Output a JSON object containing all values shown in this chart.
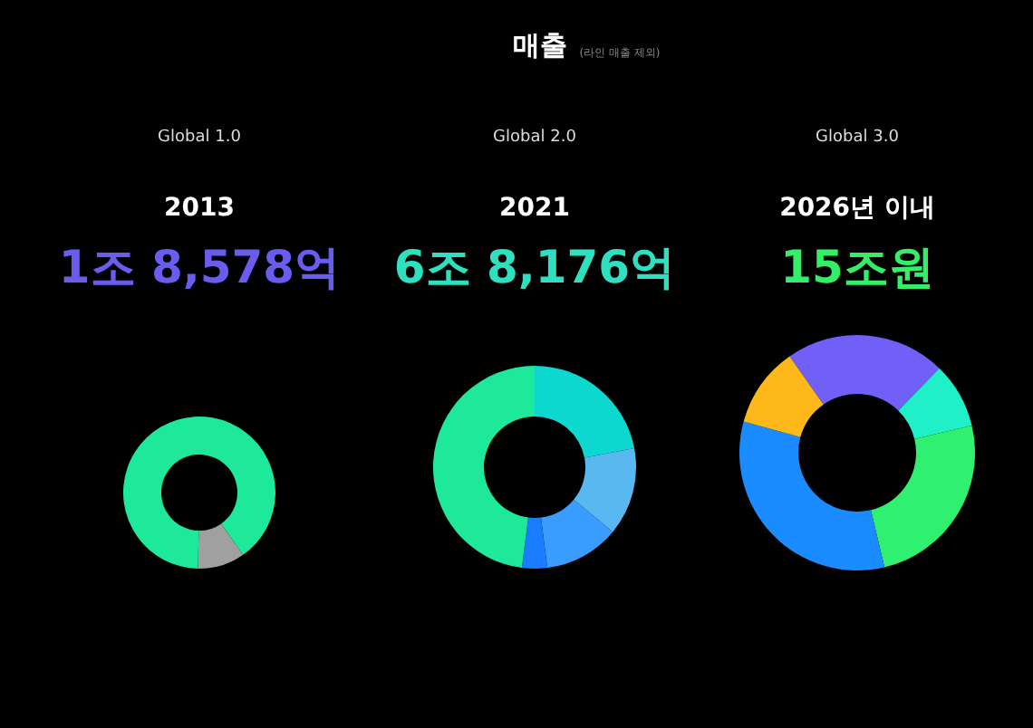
{
  "chart_data": [
    {
      "type": "other",
      "title": "매출",
      "subtitle": "(라인 매출 제외)"
    },
    {
      "type": "donut",
      "title": "Global 1.0",
      "subtitle": "2013",
      "annotations": [
        "1조 8,578억"
      ],
      "categories": [
        null,
        null
      ],
      "values": [
        10,
        90
      ],
      "colors": [
        "#a0a0a0",
        "#1ee89a"
      ]
    },
    {
      "type": "donut",
      "title": "Global 2.0",
      "subtitle": "2021",
      "annotations": [
        "6조 8,176억"
      ],
      "categories": [
        null,
        null,
        null,
        null,
        null
      ],
      "values": [
        22,
        14,
        12,
        4,
        48
      ],
      "colors": [
        "#0dd8d0",
        "#5ab8f0",
        "#3a9cff",
        "#1a7cff",
        "#1ee89a"
      ]
    },
    {
      "type": "donut",
      "title": "Global 3.0",
      "subtitle": "2026년 이내",
      "annotations": [
        "15조원"
      ],
      "categories": [
        null,
        null,
        null,
        null,
        null
      ],
      "values": [
        22,
        9,
        25,
        33,
        11
      ],
      "colors": [
        "#7060f8",
        "#20f0c8",
        "#30f070",
        "#1a8cff",
        "#ffb81a"
      ]
    }
  ]
}
